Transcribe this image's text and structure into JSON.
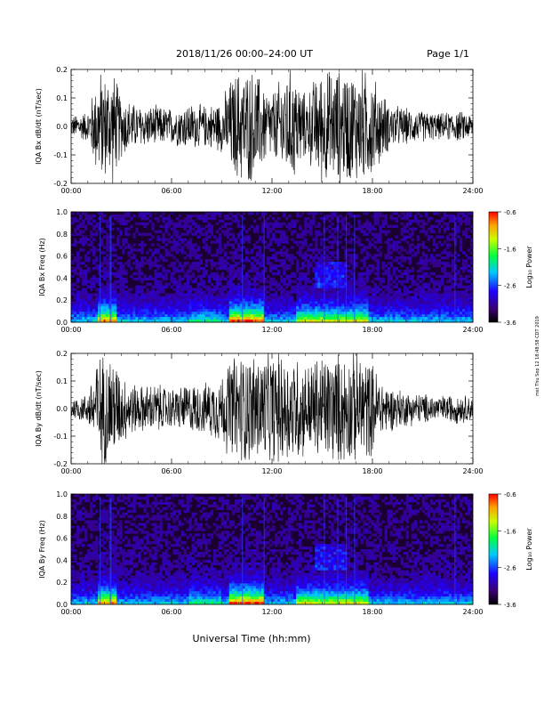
{
  "header": {
    "title": "2018/11/26   00:00–24:00 UT",
    "page": "Page 1/1"
  },
  "footer": {
    "xaxis_label": "Universal Time (hh:mm)",
    "side_stamp": "mst Thu Sep 12 18:48:58 CDT 2019"
  },
  "x_ticks": [
    "00:00",
    "06:00",
    "12:00",
    "18:00",
    "24:00"
  ],
  "colorbar": {
    "label": "Log₁₀ Power",
    "ticks": [
      "-0.6",
      "-1.6",
      "-2.6",
      "-3.6"
    ]
  },
  "chart_data": [
    {
      "type": "line",
      "ylabel": "IQA Bx dB/dt (nT/sec)",
      "ylim": [
        -0.2,
        0.2
      ],
      "yticks": [
        "0.2",
        "0.1",
        "0.0",
        "-0.1",
        "-0.2"
      ],
      "xlim_hours": [
        0,
        24
      ],
      "envelope": {
        "x_hours": [
          0,
          1,
          1.5,
          1.8,
          2,
          2.5,
          3,
          4,
          5,
          6,
          7,
          8,
          9,
          9.5,
          10,
          10.5,
          11,
          11.5,
          12,
          12.5,
          13,
          13.5,
          14,
          14.5,
          15,
          15.5,
          16,
          16.5,
          17,
          17.5,
          18,
          18.5,
          19,
          19.5,
          20,
          21,
          22,
          23,
          24
        ],
        "amplitude": [
          0.04,
          0.06,
          0.18,
          0.22,
          0.2,
          0.22,
          0.12,
          0.08,
          0.08,
          0.07,
          0.09,
          0.08,
          0.1,
          0.18,
          0.22,
          0.22,
          0.22,
          0.16,
          0.13,
          0.18,
          0.22,
          0.2,
          0.12,
          0.18,
          0.22,
          0.22,
          0.22,
          0.22,
          0.22,
          0.22,
          0.2,
          0.14,
          0.09,
          0.08,
          0.07,
          0.06,
          0.05,
          0.06,
          0.05
        ]
      }
    },
    {
      "type": "heatmap",
      "ylabel": "IQA Bx Freq (Hz)",
      "ylim": [
        0.0,
        1.0
      ],
      "yticks": [
        "1.0",
        "0.8",
        "0.6",
        "0.4",
        "0.2",
        "0.0"
      ],
      "xlim_hours": [
        0,
        24
      ],
      "color_range_log10_power": [
        -3.6,
        -0.6
      ]
    },
    {
      "type": "line",
      "ylabel": "IQA By dB/dt (nT/sec)",
      "ylim": [
        -0.2,
        0.2
      ],
      "yticks": [
        "0.2",
        "0.1",
        "0.0",
        "-0.1",
        "-0.2"
      ],
      "xlim_hours": [
        0,
        24
      ],
      "envelope": {
        "x_hours": [
          0,
          1,
          1.5,
          1.8,
          2,
          2.5,
          3,
          4,
          5,
          6,
          7,
          8,
          9,
          9.5,
          10,
          10.5,
          11,
          11.5,
          12,
          12.5,
          13,
          13.5,
          14,
          14.5,
          15,
          15.5,
          16,
          16.5,
          17,
          17.5,
          18,
          18.5,
          19,
          19.5,
          20,
          21,
          22,
          23,
          24
        ],
        "amplitude": [
          0.04,
          0.06,
          0.2,
          0.22,
          0.22,
          0.22,
          0.14,
          0.09,
          0.1,
          0.08,
          0.1,
          0.1,
          0.14,
          0.2,
          0.22,
          0.22,
          0.22,
          0.22,
          0.22,
          0.22,
          0.22,
          0.22,
          0.18,
          0.2,
          0.22,
          0.22,
          0.22,
          0.22,
          0.22,
          0.22,
          0.18,
          0.12,
          0.09,
          0.08,
          0.07,
          0.06,
          0.05,
          0.06,
          0.05
        ]
      }
    },
    {
      "type": "heatmap",
      "ylabel": "IQA By Freq (Hz)",
      "ylim": [
        0.0,
        1.0
      ],
      "yticks": [
        "1.0",
        "0.8",
        "0.6",
        "0.4",
        "0.2",
        "0.0"
      ],
      "xlim_hours": [
        0,
        24
      ],
      "color_range_log10_power": [
        -3.6,
        -0.6
      ]
    }
  ]
}
